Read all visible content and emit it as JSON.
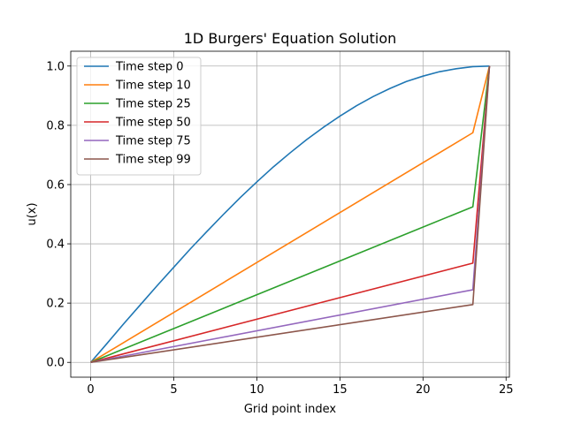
{
  "chart_data": {
    "type": "line",
    "title": "1D Burgers' Equation Solution",
    "xlabel": "Grid point index",
    "ylabel": "u(x)",
    "xlim": [
      -1.2,
      25.2
    ],
    "ylim": [
      -0.05,
      1.05
    ],
    "xticks": [
      0,
      5,
      10,
      15,
      20,
      25
    ],
    "yticks": [
      0.0,
      0.2,
      0.4,
      0.6,
      0.8,
      1.0
    ],
    "xtick_labels": [
      "0",
      "5",
      "10",
      "15",
      "20",
      "25"
    ],
    "ytick_labels": [
      "0.0",
      "0.2",
      "0.4",
      "0.6",
      "0.8",
      "1.0"
    ],
    "grid": true,
    "legend_position": "upper-left",
    "x": [
      0,
      23,
      24
    ],
    "series": [
      {
        "name": "Time step 0",
        "color": "#1f77b4",
        "x": [
          0,
          1,
          2,
          3,
          4,
          5,
          6,
          7,
          8,
          9,
          10,
          11,
          12,
          13,
          14,
          15,
          16,
          17,
          18,
          19,
          20,
          21,
          22,
          23,
          24
        ],
        "values": [
          0.0,
          0.065,
          0.131,
          0.195,
          0.259,
          0.321,
          0.383,
          0.442,
          0.5,
          0.556,
          0.609,
          0.66,
          0.707,
          0.752,
          0.793,
          0.831,
          0.866,
          0.897,
          0.924,
          0.948,
          0.966,
          0.981,
          0.991,
          0.998,
          1.0
        ]
      },
      {
        "name": "Time step 10",
        "color": "#ff7f0e",
        "x": [
          0,
          23,
          24
        ],
        "values": [
          0.0,
          0.775,
          1.0
        ]
      },
      {
        "name": "Time step 25",
        "color": "#2ca02c",
        "x": [
          0,
          23,
          24
        ],
        "values": [
          0.0,
          0.525,
          1.0
        ]
      },
      {
        "name": "Time step 50",
        "color": "#d62728",
        "x": [
          0,
          23,
          24
        ],
        "values": [
          0.0,
          0.335,
          1.0
        ]
      },
      {
        "name": "Time step 75",
        "color": "#9467bd",
        "x": [
          0,
          23,
          24
        ],
        "values": [
          0.0,
          0.245,
          1.0
        ]
      },
      {
        "name": "Time step 99",
        "color": "#8c564b",
        "x": [
          0,
          23,
          24
        ],
        "values": [
          0.0,
          0.195,
          1.0
        ]
      }
    ]
  }
}
